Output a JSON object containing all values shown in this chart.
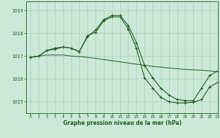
{
  "title": "Graphe pression niveau de la mer (hPa)",
  "bg_color": "#cce8d8",
  "grid_color": "#aaccbb",
  "line_color": "#1a5c1a",
  "xlim": [
    -0.5,
    23
  ],
  "ylim": [
    1014.5,
    1019.4
  ],
  "yticks": [
    1015,
    1016,
    1017,
    1018,
    1019
  ],
  "xticks": [
    0,
    1,
    2,
    3,
    4,
    5,
    6,
    7,
    8,
    9,
    10,
    11,
    12,
    13,
    14,
    15,
    16,
    17,
    18,
    19,
    20,
    21,
    22,
    23
  ],
  "series1_x": [
    0,
    1,
    2,
    3,
    4,
    5,
    6,
    7,
    8,
    9,
    10,
    11,
    12,
    13,
    14,
    15,
    16,
    17,
    18,
    19,
    20,
    21,
    22,
    23
  ],
  "series1_y": [
    1016.95,
    1017.0,
    1017.05,
    1017.05,
    1017.05,
    1017.0,
    1016.98,
    1016.95,
    1016.9,
    1016.85,
    1016.8,
    1016.75,
    1016.7,
    1016.65,
    1016.6,
    1016.55,
    1016.52,
    1016.48,
    1016.45,
    1016.42,
    1016.4,
    1016.38,
    1016.35,
    1016.32
  ],
  "series2_x": [
    0,
    1,
    2,
    3,
    4,
    5,
    6,
    7,
    8,
    9,
    10,
    11,
    12,
    13,
    14,
    15,
    16,
    17,
    18,
    19,
    20,
    21,
    22,
    23
  ],
  "series2_y": [
    1016.95,
    1017.0,
    1017.25,
    1017.35,
    1017.4,
    1017.35,
    1017.2,
    1017.85,
    1018.15,
    1018.6,
    1018.78,
    1018.78,
    1018.35,
    1017.6,
    1016.6,
    1016.05,
    1015.6,
    1015.3,
    1015.1,
    1015.05,
    1015.05,
    1015.6,
    1016.15,
    1016.35
  ],
  "series3_x": [
    0,
    1,
    2,
    3,
    4,
    5,
    6,
    7,
    8,
    9,
    10,
    11,
    12,
    13,
    14,
    15,
    16,
    17,
    18,
    19,
    20,
    21,
    22,
    23
  ],
  "series3_y": [
    1016.95,
    1017.0,
    1017.25,
    1017.3,
    1017.4,
    1017.35,
    1017.2,
    1017.9,
    1018.05,
    1018.55,
    1018.72,
    1018.72,
    1018.2,
    1017.35,
    1016.05,
    1015.6,
    1015.2,
    1015.0,
    1014.95,
    1014.95,
    1014.98,
    1015.1,
    1015.65,
    1015.85
  ]
}
